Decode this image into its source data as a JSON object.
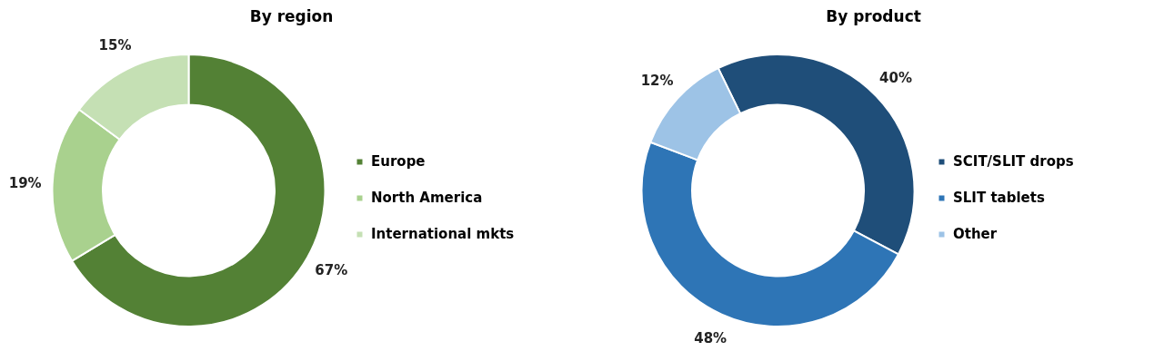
{
  "chart_data": [
    {
      "type": "donut",
      "title": "By region",
      "categories": [
        "Europe",
        "North America",
        "International mkts"
      ],
      "values": [
        67,
        19,
        15
      ],
      "colors": [
        "#538135",
        "#a9d18e",
        "#c5e0b4"
      ],
      "value_labels": [
        "67%",
        "19%",
        "15%"
      ],
      "legend": "right"
    },
    {
      "type": "donut",
      "title": "By product",
      "categories": [
        "SCIT/SLIT drops",
        "SLIT tablets",
        "Other"
      ],
      "values": [
        40,
        48,
        12
      ],
      "colors": [
        "#1f4e79",
        "#2e75b6",
        "#9dc3e6"
      ],
      "value_labels": [
        "40%",
        "48%",
        "12%"
      ],
      "legend": "right"
    }
  ]
}
